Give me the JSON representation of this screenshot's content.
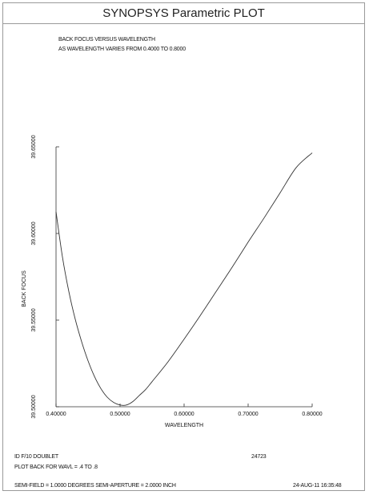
{
  "window": {
    "title": "SYNOPSYS Parametric PLOT"
  },
  "header": {
    "line1": "BACK FOCUS VERSUS WAVELENGTH",
    "line2": "AS WAVELENGTH VARIES FROM   0.4000 TO   0.8000"
  },
  "footer": {
    "lens_id": "ID F/10 DOUBLET",
    "run_id": "24723",
    "plot_desc": "PLOT BACK FOR WAVL = .4 TO .8",
    "semi_info": "SEMI-FIELD =  1.0000 DEGREES  SEMI-APERTURE =  2.0000 INCH",
    "timestamp": "24-AUG-11  16:35:48"
  },
  "chart_data": {
    "type": "line",
    "xlabel": "WAVELENGTH",
    "ylabel": "BACK FOCUS",
    "xlim": [
      0.4,
      0.8
    ],
    "ylim": [
      39.5,
      39.65
    ],
    "xticks": [
      0.4,
      0.5,
      0.6,
      0.7,
      0.8
    ],
    "xtick_labels": [
      "0.40000",
      "0.50000",
      "0.60000",
      "0.70000",
      "0.80000"
    ],
    "yticks": [
      39.5,
      39.55,
      39.6,
      39.65
    ],
    "ytick_labels": [
      "39.50000",
      "39.55000",
      "39.60000",
      "39.65000"
    ],
    "series": [
      {
        "x": [
          0.4,
          0.41,
          0.42,
          0.43,
          0.44,
          0.45,
          0.46,
          0.47,
          0.48,
          0.49,
          0.5,
          0.51,
          0.52,
          0.53,
          0.54,
          0.55,
          0.575,
          0.6,
          0.625,
          0.65,
          0.675,
          0.7,
          0.725,
          0.75,
          0.775,
          0.8
        ],
        "y": [
          39.6125,
          39.5865,
          39.5665,
          39.5505,
          39.5375,
          39.5265,
          39.5175,
          39.5105,
          39.5055,
          39.5025,
          39.501,
          39.501,
          39.503,
          39.5065,
          39.51,
          39.5145,
          39.526,
          39.539,
          39.5525,
          39.5665,
          39.5805,
          39.595,
          39.609,
          39.6235,
          39.638,
          39.6465
        ]
      }
    ]
  }
}
